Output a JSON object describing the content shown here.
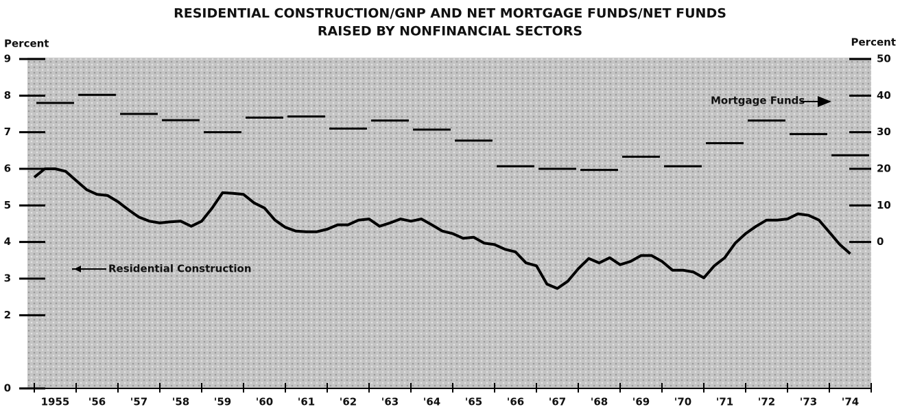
{
  "chart_data": {
    "type": "line",
    "title": "RESIDENTIAL CONSTRUCTION/GNP AND NET MORTGAGE FUNDS/NET FUNDS",
    "subtitle": "RAISED BY NONFINANCIAL SECTORS",
    "y_label": "Percent",
    "y2_label": "Percent",
    "annotations": [
      "Residential Construction",
      "Mortgage Funds"
    ],
    "categories": [
      "1955",
      "'56",
      "'57",
      "'58",
      "'59",
      "'60",
      "'61",
      "'62",
      "'63",
      "'64",
      "'65",
      "'66",
      "'67",
      "'68",
      "'69",
      "'70",
      "'71",
      "'72",
      "'73",
      "'74"
    ],
    "xlim": [
      1955,
      1975
    ],
    "xticks": [
      1955,
      1956,
      1957,
      1958,
      1959,
      1960,
      1961,
      1962,
      1963,
      1964,
      1965,
      1966,
      1967,
      1968,
      1969,
      1970,
      1971,
      1972,
      1973,
      1974,
      1975
    ],
    "ylim": [
      0,
      9
    ],
    "yticks": [
      0,
      2,
      3,
      4,
      5,
      6,
      7,
      8,
      9
    ],
    "y2lim": [
      -40,
      50
    ],
    "y2ticks": [
      0,
      10,
      20,
      30,
      40,
      50
    ],
    "series": [
      {
        "name": "Residential Construction",
        "color": "#000000",
        "x": [
          1955,
          1955.25,
          1955.5,
          1955.75,
          1956,
          1956.25,
          1956.5,
          1956.75,
          1957,
          1957.25,
          1957.5,
          1957.75,
          1958,
          1958.25,
          1958.5,
          1958.75,
          1959,
          1959.25,
          1959.5,
          1959.75,
          1960,
          1960.25,
          1960.5,
          1960.75,
          1961,
          1961.25,
          1961.5,
          1961.75,
          1962,
          1962.25,
          1962.5,
          1962.75,
          1963,
          1963.25,
          1963.5,
          1963.75,
          1964,
          1964.25,
          1964.5,
          1964.75,
          1965,
          1965.25,
          1965.5,
          1965.75,
          1966,
          1966.25,
          1966.5,
          1966.75,
          1967,
          1967.25,
          1967.5,
          1967.75,
          1968,
          1968.25,
          1968.5,
          1968.75,
          1969,
          1969.25,
          1969.5,
          1969.75,
          1970,
          1970.25,
          1970.5,
          1970.75,
          1971,
          1971.25,
          1971.5,
          1971.75,
          1972,
          1972.25,
          1972.5,
          1972.75,
          1973,
          1973.25,
          1973.5,
          1973.75,
          1974,
          1974.25,
          1974.5
        ],
        "values": [
          5.77,
          6.0,
          6.0,
          5.93,
          5.68,
          5.43,
          5.3,
          5.27,
          5.1,
          4.88,
          4.68,
          4.57,
          4.52,
          4.55,
          4.57,
          4.43,
          4.57,
          4.93,
          5.35,
          5.33,
          5.3,
          5.07,
          4.93,
          4.6,
          4.4,
          4.3,
          4.28,
          4.28,
          4.35,
          4.47,
          4.47,
          4.6,
          4.63,
          4.43,
          4.52,
          4.63,
          4.57,
          4.63,
          4.47,
          4.3,
          4.23,
          4.1,
          4.13,
          3.97,
          3.93,
          3.8,
          3.73,
          3.43,
          3.35,
          2.85,
          2.73,
          2.93,
          3.27,
          3.55,
          3.43,
          3.57,
          3.38,
          3.47,
          3.63,
          3.63,
          3.47,
          3.23,
          3.23,
          3.18,
          3.02,
          3.35,
          3.57,
          3.97,
          4.23,
          4.43,
          4.6,
          4.6,
          4.63,
          4.77,
          4.73,
          4.6,
          4.27,
          3.93,
          3.68
        ]
      },
      {
        "name": "Mortgage Funds",
        "color": "#000000",
        "axis": "y2",
        "x": [
          1955,
          1956,
          1957,
          1958,
          1959,
          1960,
          1961,
          1962,
          1963,
          1964,
          1965,
          1966,
          1967,
          1968,
          1969,
          1970,
          1971,
          1972,
          1973,
          1974
        ],
        "values": [
          38,
          40.2,
          35,
          33.3,
          30,
          34,
          34.3,
          31,
          33.2,
          30.7,
          27.7,
          20.7,
          20,
          19.7,
          23.3,
          20.7,
          27,
          33.2,
          29.5,
          23.7
        ]
      }
    ]
  }
}
